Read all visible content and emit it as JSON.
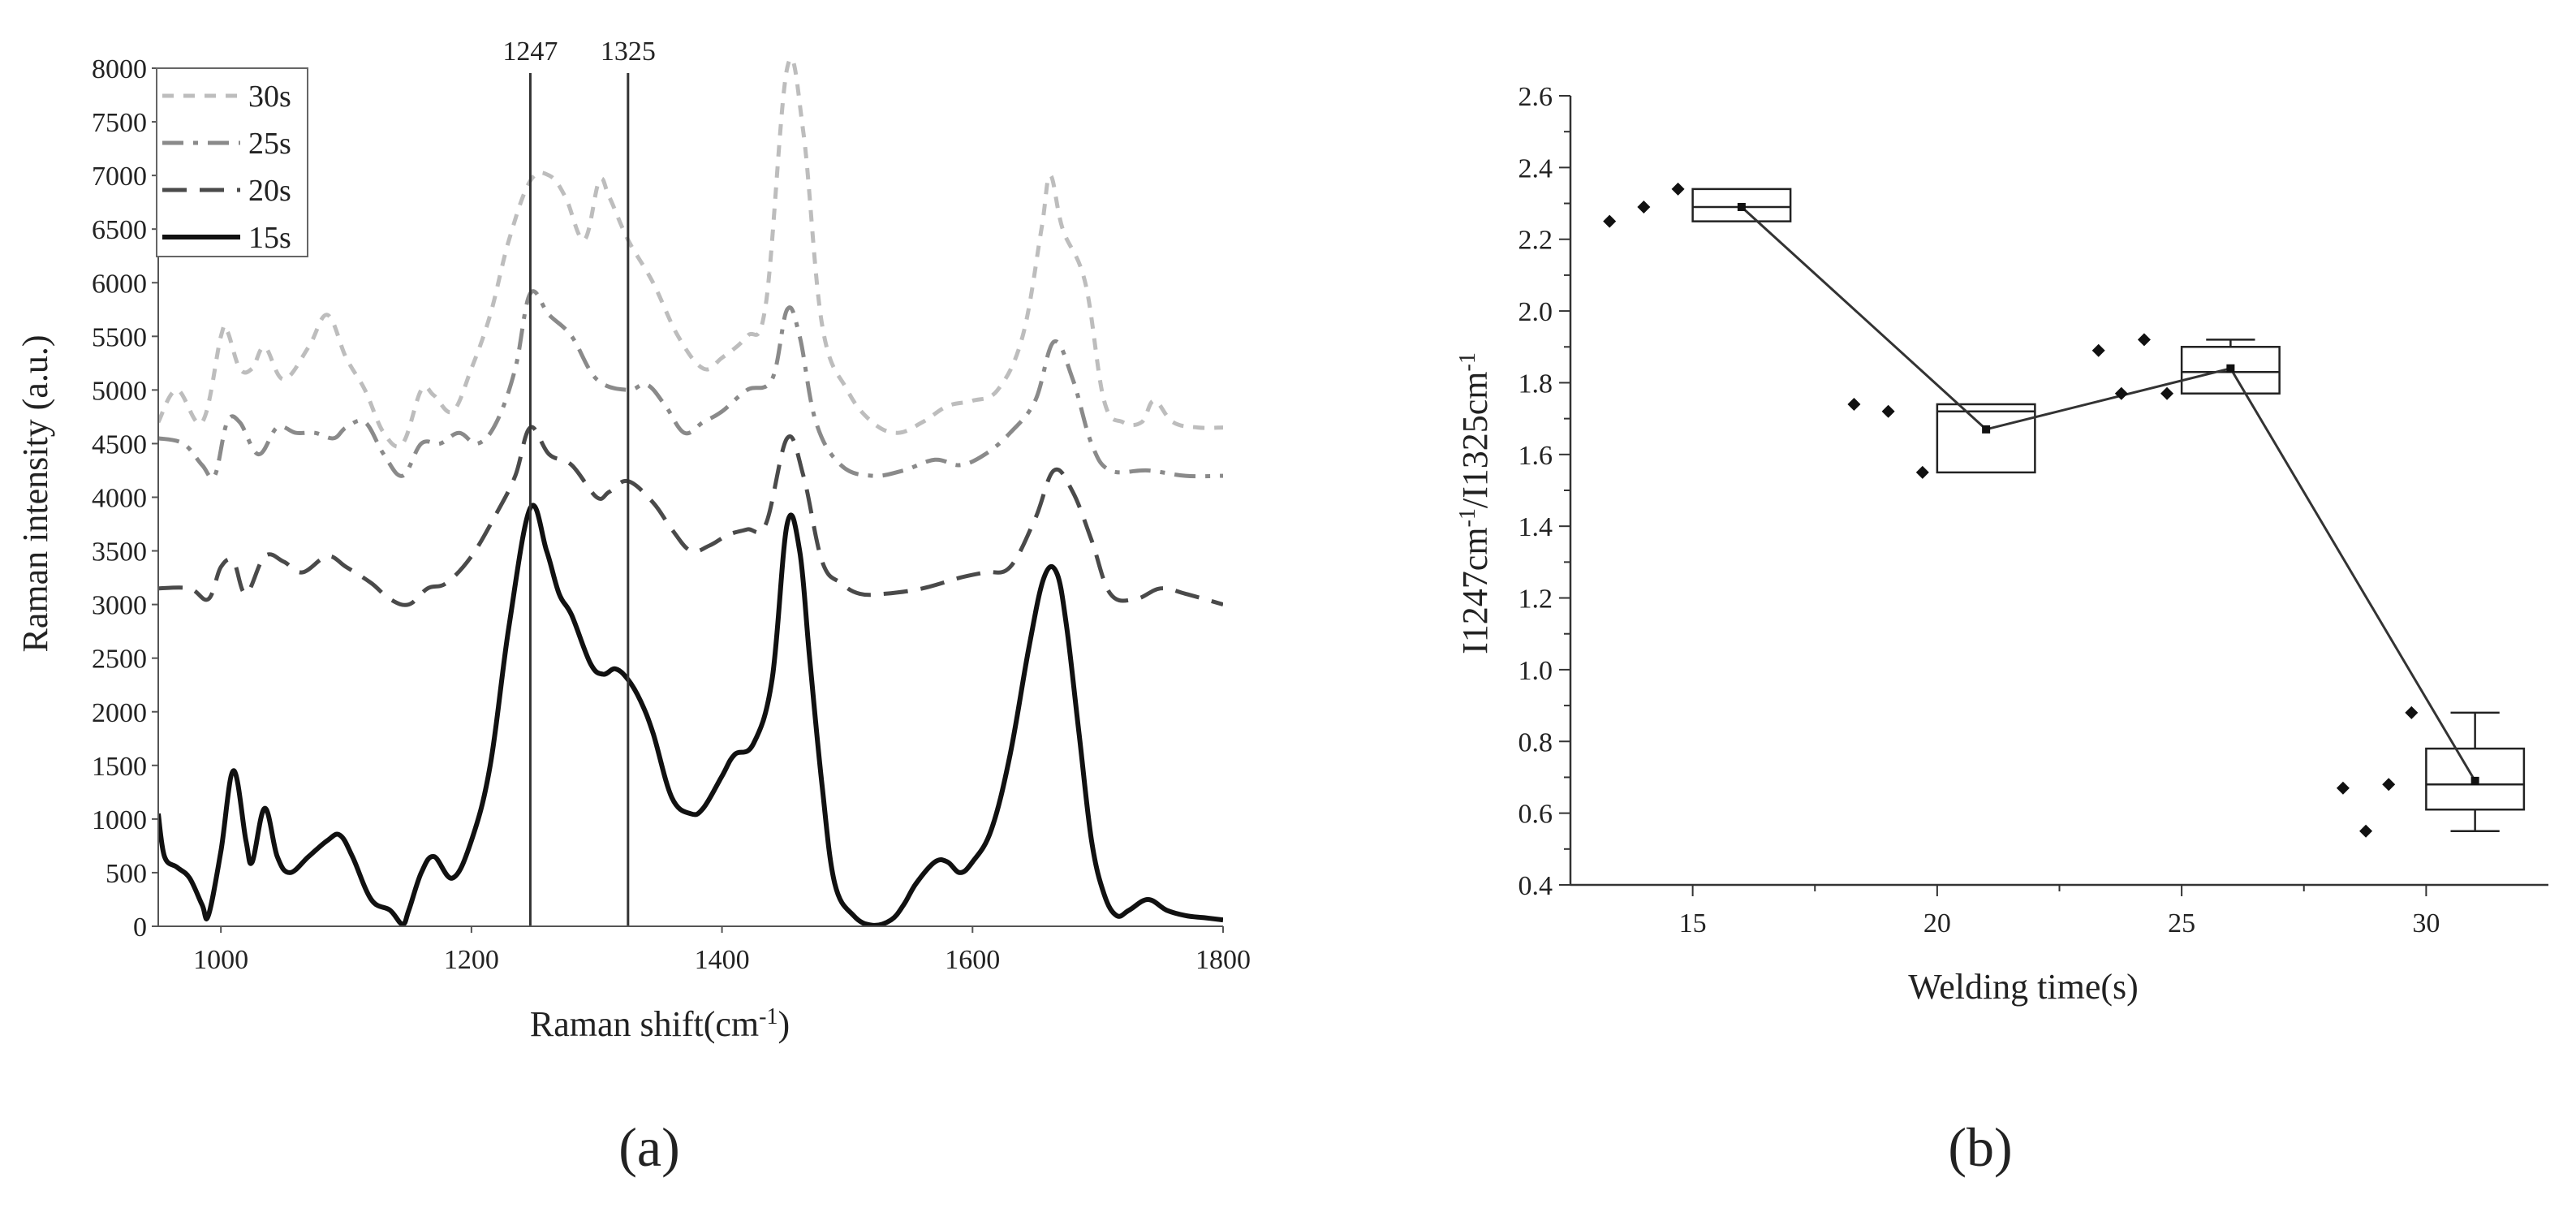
{
  "chart_data": [
    {
      "type": "line",
      "panel_label": "(a)",
      "xlabel": "Raman shift(cm",
      "xlabel_sup": "-1",
      "xlabel_end": ")",
      "ylabel": "Raman intensity (a.u.)",
      "xlim": [
        950,
        1800
      ],
      "ylim": [
        0,
        8000
      ],
      "x_ticks": [
        1000,
        1200,
        1400,
        1600,
        1800
      ],
      "y_ticks": [
        0,
        500,
        1000,
        1500,
        2000,
        2500,
        3000,
        3500,
        4000,
        4500,
        5000,
        5500,
        6000,
        6500,
        7000,
        7500,
        8000
      ],
      "legend": {
        "position": "top-left",
        "entries": [
          "30s",
          "25s",
          "20s",
          "15s"
        ]
      },
      "reference_lines": [
        {
          "x": 1247,
          "label": "1247"
        },
        {
          "x": 1325,
          "label": "1325"
        }
      ],
      "series": [
        {
          "name": "30s",
          "color": "#bdbdbd",
          "dash": "short-dash",
          "x": [
            950,
            965,
            985,
            1000,
            1005,
            1015,
            1025,
            1035,
            1050,
            1070,
            1085,
            1100,
            1115,
            1130,
            1145,
            1160,
            1170,
            1185,
            1200,
            1215,
            1230,
            1247,
            1262,
            1275,
            1290,
            1302,
            1310,
            1325,
            1345,
            1365,
            1385,
            1400,
            1420,
            1435,
            1452,
            1465,
            1480,
            1500,
            1520,
            1540,
            1560,
            1580,
            1600,
            1620,
            1640,
            1655,
            1662,
            1672,
            1690,
            1705,
            1720,
            1735,
            1745,
            1760,
            1780,
            1800
          ],
          "y": [
            4700,
            5000,
            4700,
            5500,
            5550,
            5200,
            5200,
            5400,
            5100,
            5400,
            5700,
            5300,
            5000,
            4600,
            4500,
            5000,
            4950,
            4800,
            5200,
            5700,
            6400,
            6950,
            7000,
            6800,
            6400,
            6950,
            6800,
            6400,
            6000,
            5500,
            5200,
            5300,
            5500,
            5800,
            8000,
            7400,
            5600,
            5000,
            4700,
            4600,
            4700,
            4850,
            4900,
            5000,
            5500,
            6500,
            7000,
            6500,
            6000,
            4900,
            4700,
            4700,
            4900,
            4700,
            4650,
            4650
          ]
        },
        {
          "name": "25s",
          "color": "#8a8a8a",
          "dash": "dash-dot",
          "x": [
            950,
            970,
            985,
            995,
            1005,
            1015,
            1030,
            1045,
            1060,
            1075,
            1090,
            1100,
            1115,
            1130,
            1145,
            1160,
            1175,
            1190,
            1205,
            1220,
            1235,
            1247,
            1262,
            1280,
            1300,
            1325,
            1340,
            1355,
            1370,
            1385,
            1400,
            1420,
            1440,
            1452,
            1462,
            1475,
            1495,
            1520,
            1545,
            1570,
            1590,
            1610,
            1630,
            1650,
            1665,
            1680,
            1695,
            1710,
            1740,
            1770,
            1800
          ],
          "y": [
            4550,
            4500,
            4300,
            4200,
            4700,
            4700,
            4400,
            4650,
            4600,
            4600,
            4550,
            4650,
            4700,
            4400,
            4200,
            4500,
            4500,
            4600,
            4500,
            4700,
            5200,
            5900,
            5700,
            5500,
            5100,
            5000,
            5050,
            4850,
            4600,
            4700,
            4800,
            5000,
            5100,
            5750,
            5500,
            4700,
            4300,
            4200,
            4250,
            4350,
            4300,
            4400,
            4600,
            4900,
            5450,
            5100,
            4500,
            4250,
            4250,
            4200,
            4200
          ]
        },
        {
          "name": "20s",
          "color": "#4a4a4a",
          "dash": "long-dash",
          "x": [
            950,
            975,
            990,
            1000,
            1010,
            1020,
            1035,
            1050,
            1065,
            1085,
            1100,
            1120,
            1135,
            1150,
            1165,
            1180,
            1200,
            1220,
            1235,
            1247,
            1262,
            1280,
            1300,
            1310,
            1325,
            1345,
            1360,
            1375,
            1390,
            1405,
            1420,
            1435,
            1452,
            1465,
            1480,
            1495,
            1510,
            1530,
            1560,
            1590,
            1610,
            1630,
            1650,
            1665,
            1680,
            1695,
            1710,
            1730,
            1750,
            1770,
            1800
          ],
          "y": [
            3150,
            3150,
            3050,
            3350,
            3400,
            3100,
            3450,
            3400,
            3300,
            3450,
            3350,
            3200,
            3050,
            3000,
            3150,
            3200,
            3450,
            3850,
            4200,
            4650,
            4400,
            4300,
            4000,
            4050,
            4150,
            3950,
            3700,
            3500,
            3550,
            3650,
            3700,
            3750,
            4550,
            4200,
            3400,
            3200,
            3100,
            3100,
            3150,
            3250,
            3300,
            3350,
            3800,
            4250,
            4050,
            3600,
            3100,
            3050,
            3150,
            3100,
            3000
          ]
        },
        {
          "name": "15s",
          "color": "#111111",
          "dash": "solid",
          "x": [
            950,
            955,
            965,
            975,
            985,
            990,
            1000,
            1010,
            1020,
            1025,
            1035,
            1045,
            1055,
            1070,
            1085,
            1095,
            1105,
            1120,
            1135,
            1145,
            1150,
            1160,
            1170,
            1185,
            1200,
            1215,
            1230,
            1247,
            1260,
            1270,
            1280,
            1295,
            1305,
            1315,
            1325,
            1335,
            1345,
            1360,
            1375,
            1385,
            1400,
            1410,
            1425,
            1440,
            1452,
            1462,
            1470,
            1480,
            1490,
            1505,
            1520,
            1535,
            1545,
            1555,
            1570,
            1580,
            1590,
            1600,
            1615,
            1630,
            1645,
            1657,
            1667,
            1675,
            1685,
            1695,
            1705,
            1715,
            1725,
            1740,
            1755,
            1770,
            1785,
            1800
          ],
          "y": [
            1050,
            650,
            550,
            450,
            200,
            100,
            700,
            1450,
            800,
            600,
            1100,
            650,
            500,
            650,
            800,
            850,
            650,
            250,
            150,
            20,
            150,
            500,
            650,
            450,
            800,
            1500,
            2800,
            3900,
            3500,
            3100,
            2900,
            2450,
            2350,
            2400,
            2300,
            2100,
            1800,
            1200,
            1050,
            1100,
            1400,
            1600,
            1700,
            2300,
            3750,
            3500,
            2500,
            1300,
            400,
            100,
            10,
            60,
            200,
            400,
            600,
            600,
            500,
            600,
            900,
            1600,
            2600,
            3250,
            3300,
            2800,
            1800,
            800,
            300,
            100,
            150,
            250,
            150,
            100,
            80,
            60
          ]
        }
      ]
    },
    {
      "type": "box",
      "panel_label": "(b)",
      "xlabel": "Welding time(s)",
      "ylabel_parts": [
        "I1247cm",
        "-1",
        "/I1325cm",
        "-1"
      ],
      "categories": [
        15,
        20,
        25,
        30
      ],
      "xlim": [
        12.5,
        32.5
      ],
      "ylim": [
        0.4,
        2.6
      ],
      "y_ticks": [
        0.4,
        0.6,
        0.8,
        1.0,
        1.2,
        1.4,
        1.6,
        1.8,
        2.0,
        2.2,
        2.4,
        2.6
      ],
      "y_tick_labels": [
        "0.4",
        "0.6",
        "0.8",
        "1.0",
        "1.2",
        "1.4",
        "1.6",
        "1.8",
        "2.0",
        "2.2",
        "2.4",
        "2.6"
      ],
      "x_tick_labels": [
        "15",
        "20",
        "25",
        "30"
      ],
      "boxes": [
        {
          "category": 15,
          "min": 2.25,
          "q1": 2.25,
          "median": 2.29,
          "q3": 2.34,
          "max": 2.34,
          "mean": 2.29,
          "points": [
            2.25,
            2.29,
            2.34
          ]
        },
        {
          "category": 20,
          "min": 1.55,
          "q1": 1.55,
          "median": 1.72,
          "q3": 1.74,
          "max": 1.74,
          "mean": 1.67,
          "points": [
            1.74,
            1.72,
            1.55
          ]
        },
        {
          "category": 25,
          "min": 1.77,
          "q1": 1.77,
          "median": 1.83,
          "q3": 1.9,
          "max": 1.92,
          "mean": 1.84,
          "points": [
            1.89,
            1.77,
            1.92,
            1.77
          ]
        },
        {
          "category": 30,
          "min": 0.55,
          "q1": 0.61,
          "median": 0.68,
          "q3": 0.78,
          "max": 0.88,
          "mean": 0.69,
          "points": [
            0.67,
            0.55,
            0.68,
            0.88
          ]
        }
      ],
      "mean_line": [
        2.29,
        1.67,
        1.84,
        0.69
      ]
    }
  ]
}
